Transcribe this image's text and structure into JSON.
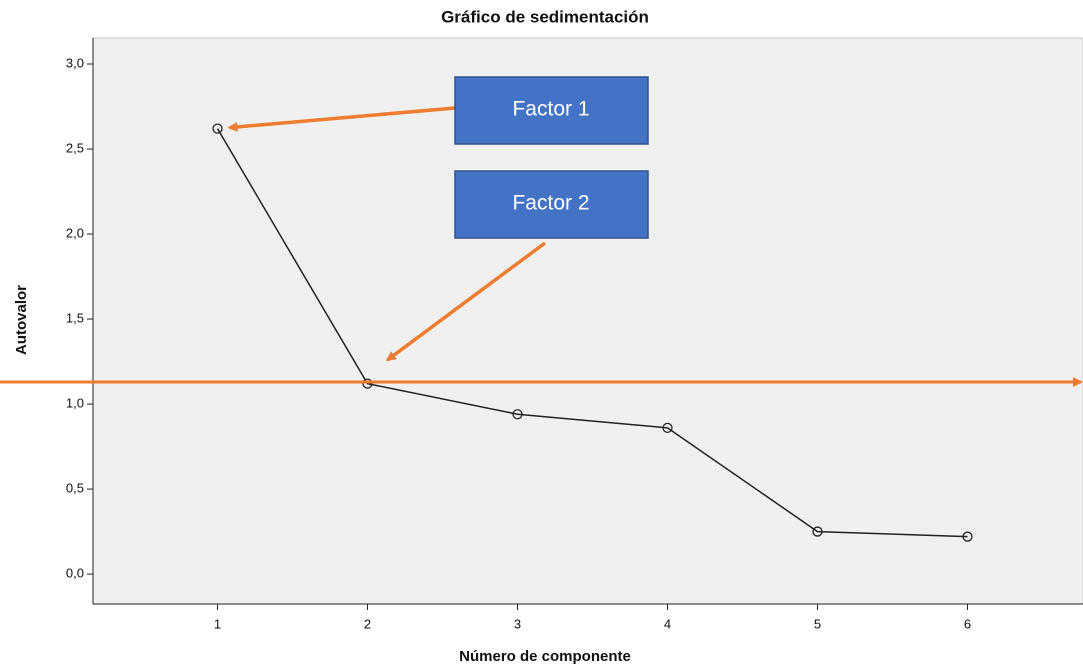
{
  "chart_data": {
    "type": "line",
    "title": "Gráfico de sedimentación",
    "x_label": "Número de componente",
    "y_label": "Autovalor",
    "x": [
      1,
      2,
      3,
      4,
      5,
      6
    ],
    "values": [
      2.62,
      1.12,
      0.94,
      0.86,
      0.25,
      0.22
    ],
    "color": "#222222",
    "xlim": [
      0.17,
      6.77
    ],
    "xticks": [
      1,
      2,
      3,
      4,
      5,
      6
    ],
    "ylim": [
      -0.176,
      3.153
    ],
    "yticks": [
      {
        "value": 0,
        "label": "0,0"
      },
      {
        "value": 0.5,
        "label": "0,5"
      },
      {
        "value": 1,
        "label": "1,0"
      },
      {
        "value": 1.5,
        "label": "1,5"
      },
      {
        "value": 2,
        "label": "2,0"
      },
      {
        "value": 2.5,
        "label": "2,5"
      },
      {
        "value": 3,
        "label": "3,0"
      }
    ],
    "reference_line": {
      "value": 1.13,
      "color": "#ed7d31"
    },
    "annotations": [
      {
        "text": "Factor 1"
      },
      {
        "text": "Factor 2"
      }
    ]
  }
}
